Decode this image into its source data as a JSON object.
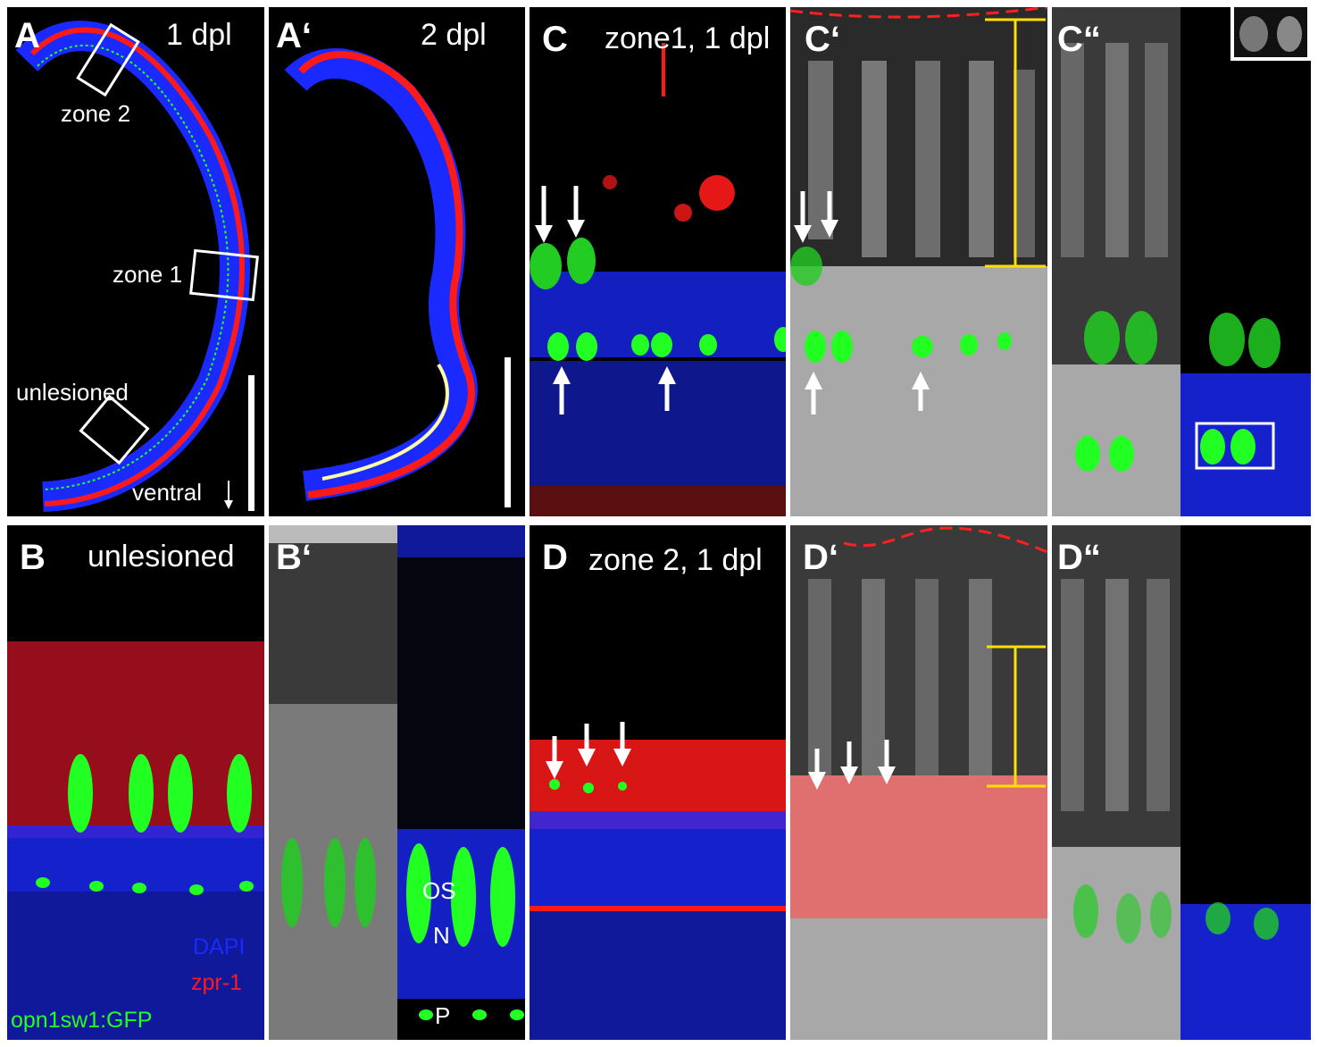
{
  "colors": {
    "dapi": "#1a2aff",
    "zpr1": "#ff1a1a",
    "gfp": "#22ff22",
    "dic": "#9a9a9a",
    "scale_bracket": "#ffe000",
    "lesion_outline": "#ff2020",
    "annotation": "#ffffff"
  },
  "panels": {
    "A": {
      "letter": "A",
      "stage": "1 dpl",
      "zone2": "zone 2",
      "zone1": "zone 1",
      "unlesioned": "unlesioned",
      "orientation": "ventral"
    },
    "A2": {
      "letter": "A‘",
      "stage": "2 dpl"
    },
    "C": {
      "letter": "C",
      "stage": "zone1, 1 dpl"
    },
    "C2": {
      "letter": "C‘"
    },
    "C3": {
      "letter": "C“"
    },
    "B": {
      "letter": "B",
      "stage": "unlesioned",
      "legend": [
        "DAPI",
        "zpr-1",
        "opn1sw1:GFP"
      ]
    },
    "B2": {
      "letter": "B‘",
      "os": "OS",
      "n": "N",
      "p": "P"
    },
    "D": {
      "letter": "D",
      "stage": "zone 2, 1 dpl"
    },
    "D2": {
      "letter": "D‘"
    },
    "D3": {
      "letter": "D“"
    }
  }
}
